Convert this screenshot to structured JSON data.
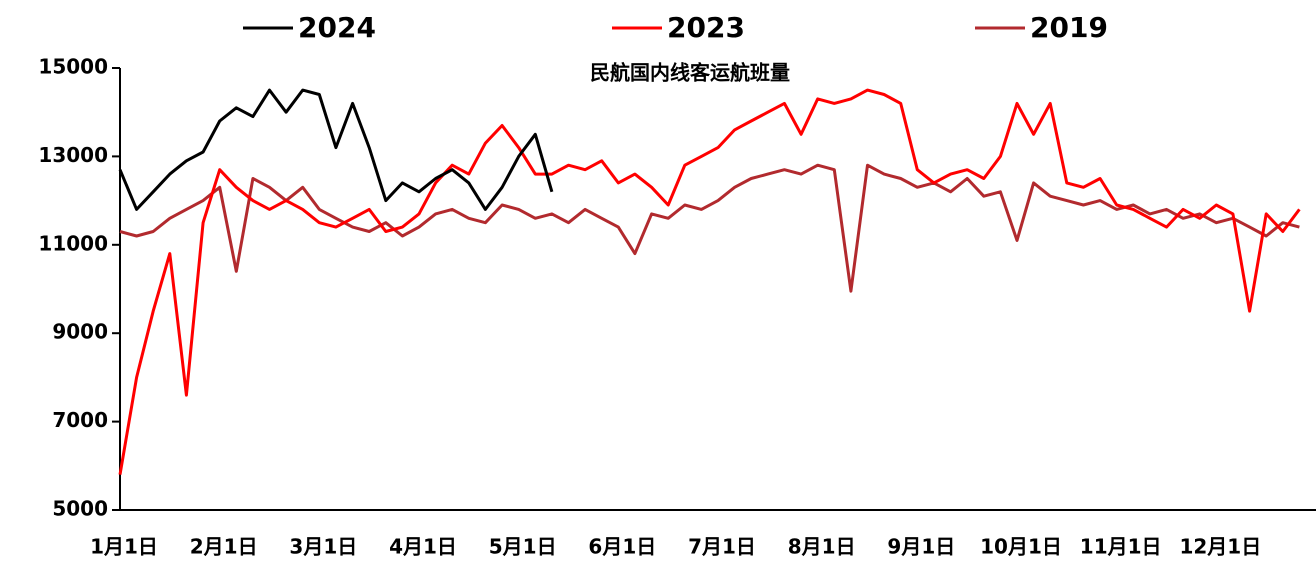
{
  "chart_data": {
    "type": "line",
    "title": "民航国内线客运航班量",
    "categories": [
      "1月1日",
      null,
      null,
      null,
      null,
      null,
      "2月1日",
      null,
      null,
      null,
      null,
      null,
      "3月1日",
      null,
      null,
      null,
      null,
      null,
      "4月1日",
      null,
      null,
      null,
      null,
      null,
      "5月1日",
      null,
      null,
      null,
      null,
      null,
      "6月1日",
      null,
      null,
      null,
      null,
      null,
      "7月1日",
      null,
      null,
      null,
      null,
      null,
      "8月1日",
      null,
      null,
      null,
      null,
      null,
      "9月1日",
      null,
      null,
      null,
      null,
      null,
      "10月1日",
      null,
      null,
      null,
      null,
      null,
      "11月1日",
      null,
      null,
      null,
      null,
      null,
      "12月1日",
      null,
      null,
      null,
      null,
      null
    ],
    "series": [
      {
        "name": "2024",
        "color": "#000000",
        "values": [
          12700,
          11800,
          12200,
          12600,
          12900,
          13100,
          13800,
          14100,
          13900,
          14500,
          14000,
          14500,
          14400,
          13200,
          14200,
          13200,
          12000,
          12400,
          12200,
          12500,
          12700,
          12400,
          11800,
          12300,
          13000,
          13500,
          12200,
          null,
          null,
          null,
          null,
          null,
          null,
          null,
          null,
          null,
          null,
          null,
          null,
          null,
          null,
          null,
          null,
          null,
          null,
          null,
          null,
          null,
          null,
          null,
          null,
          null,
          null,
          null,
          null,
          null,
          null,
          null,
          null,
          null,
          null,
          null,
          null,
          null,
          null,
          null,
          null,
          null,
          null,
          null,
          null,
          null
        ]
      },
      {
        "name": "2023",
        "color": "#ff0000",
        "values": [
          5800,
          8000,
          9500,
          10800,
          7600,
          11500,
          12700,
          12300,
          12000,
          11800,
          12000,
          11800,
          11500,
          11400,
          11600,
          11800,
          11300,
          11400,
          11700,
          12400,
          12800,
          12600,
          13300,
          13700,
          13200,
          12600,
          12600,
          12800,
          12700,
          12900,
          12400,
          12600,
          12300,
          11900,
          12800,
          13000,
          13200,
          13600,
          13800,
          14000,
          14200,
          13500,
          14300,
          14200,
          14300,
          14500,
          14400,
          14200,
          12700,
          12400,
          12600,
          12700,
          12500,
          13000,
          14200,
          13500,
          14200,
          12400,
          12300,
          12500,
          11900,
          11800,
          11600,
          11400,
          11800,
          11600,
          11900,
          11700,
          9500,
          11700,
          11300,
          11800
        ]
      },
      {
        "name": "2019",
        "color": "#b22a2e",
        "values": [
          11300,
          11200,
          11300,
          11600,
          11800,
          12000,
          12300,
          10400,
          12500,
          12300,
          12000,
          12300,
          11800,
          11600,
          11400,
          11300,
          11500,
          11200,
          11400,
          11700,
          11800,
          11600,
          11500,
          11900,
          11800,
          11600,
          11700,
          11500,
          11800,
          11600,
          11400,
          10800,
          11700,
          11600,
          11900,
          11800,
          12000,
          12300,
          12500,
          12600,
          12700,
          12600,
          12800,
          12700,
          9950,
          12800,
          12600,
          12500,
          12300,
          12400,
          12200,
          12500,
          12100,
          12200,
          11100,
          12400,
          12100,
          12000,
          11900,
          12000,
          11800,
          11900,
          11700,
          11800,
          11600,
          11700,
          11500,
          11600,
          11400,
          11200,
          11500,
          11400
        ]
      }
    ],
    "ylim": [
      5000,
      15000
    ],
    "yticks": [
      5000,
      7000,
      9000,
      11000,
      13000,
      15000
    ],
    "grid": false,
    "legend": "top"
  }
}
